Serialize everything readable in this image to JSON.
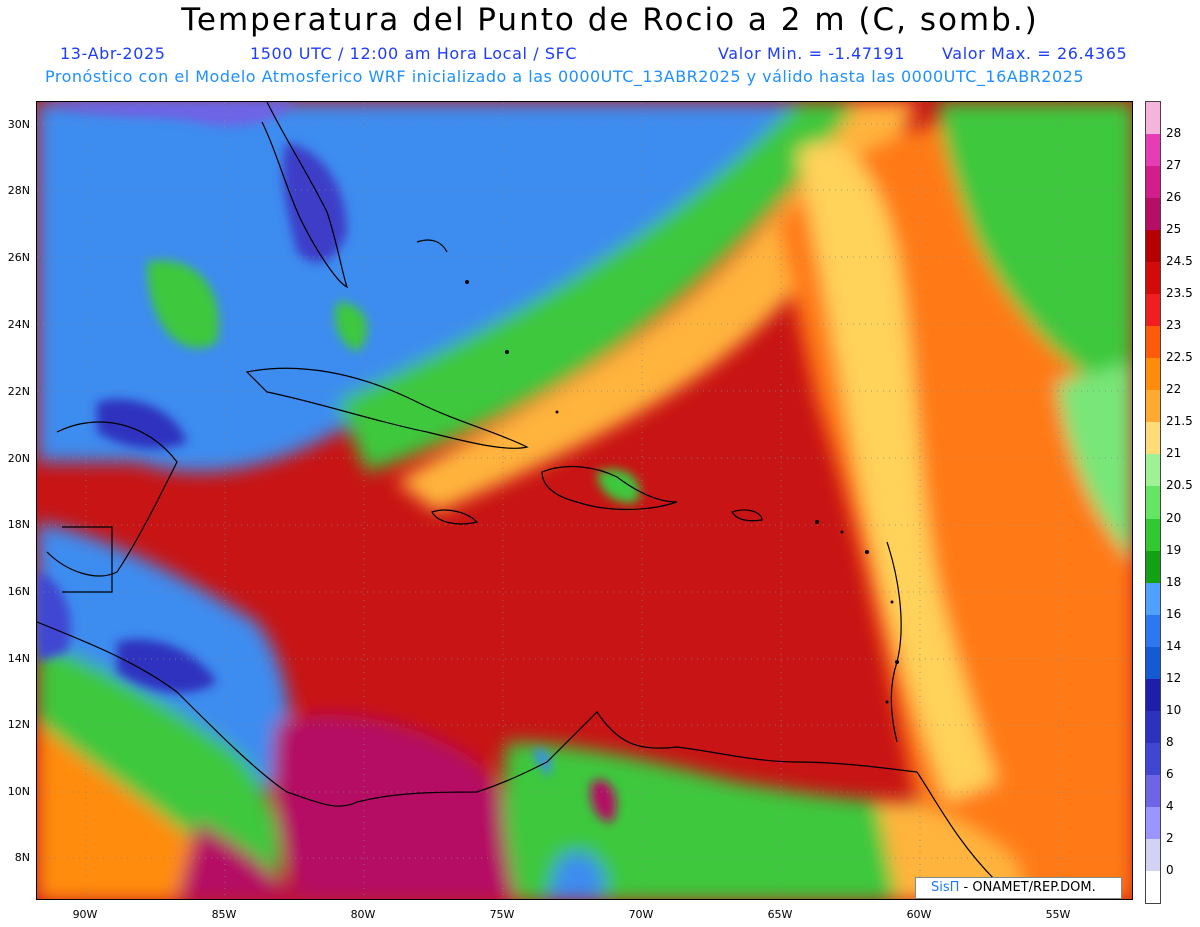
{
  "title": "Temperatura del Punto de Rocio a 2 m (C, somb.)",
  "subtitle": {
    "date": "13-Abr-2025",
    "time": "1500 UTC / 12:00 am Hora Local / SFC",
    "valor_min": "Valor Min. = -1.47191",
    "valor_max": "Valor Max. = 26.4365"
  },
  "forecast_info": "Pronóstico con el Modelo Atmosferico WRF inicializado a las 0000UTC_13ABR2025 y válido hasta las  0000UTC_16ABR2025",
  "map": {
    "lat_labels": [
      "30N",
      "28N",
      "26N",
      "24N",
      "22N",
      "20N",
      "18N",
      "16N",
      "14N",
      "12N",
      "10N",
      "8N"
    ],
    "lon_labels": [
      "90W",
      "85W",
      "80W",
      "75W",
      "70W",
      "65W",
      "60W",
      "55W"
    ],
    "region": "Caribbean / Gulf of Mexico / Central America",
    "grid_lines": true
  },
  "colorbar": {
    "labels": [
      "28",
      "27",
      "26",
      "25",
      "24.5",
      "23.5",
      "23",
      "22.5",
      "22",
      "21.5",
      "21",
      "20.5",
      "20",
      "19",
      "18",
      "16",
      "14",
      "12",
      "10",
      "8",
      "6",
      "4",
      "2",
      "0"
    ],
    "colors": [
      "#f5b4dc",
      "#e63cb4",
      "#d21e8c",
      "#b40f64",
      "#b40000",
      "#d20a0a",
      "#f01e1e",
      "#ff5a0a",
      "#ff8c0a",
      "#ffaa32",
      "#ffdc78",
      "#a0f096",
      "#64e664",
      "#32c832",
      "#14a014",
      "#50a0ff",
      "#2d78f0",
      "#145ad2",
      "#1e1eaa",
      "#2d32be",
      "#4146d2",
      "#6e64e6",
      "#9b96ff",
      "#d2d2f5",
      "#ffffff"
    ]
  },
  "credit": {
    "brand": "SisΠ",
    "org": " - ONAMET/REP.DOM."
  }
}
